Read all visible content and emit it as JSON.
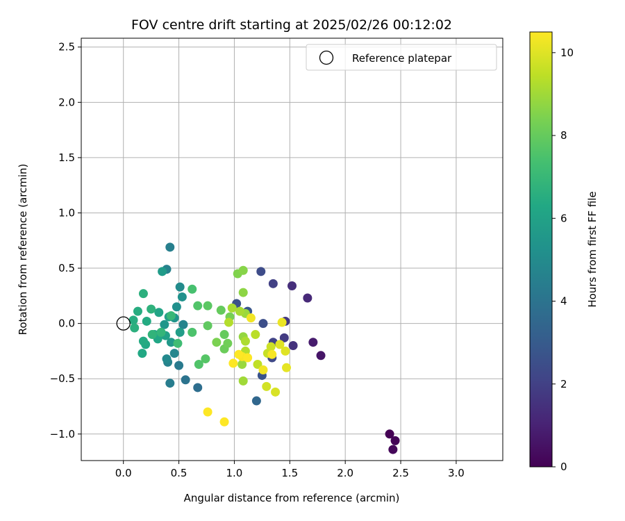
{
  "chart_data": {
    "type": "scatter",
    "title": "FOV centre drift starting at 2025/02/26 00:12:02",
    "xlabel": "Angular distance from reference (arcmin)",
    "ylabel": "Rotation from reference (arcmin)",
    "xlim": [
      -0.38,
      3.42
    ],
    "ylim": [
      -1.24,
      2.58
    ],
    "xticks": [
      0.0,
      0.5,
      1.0,
      1.5,
      2.0,
      2.5,
      3.0
    ],
    "xtick_labels": [
      "0.0",
      "0.5",
      "1.0",
      "1.5",
      "2.0",
      "2.5",
      "3.0"
    ],
    "yticks": [
      -1.0,
      -0.5,
      0.0,
      0.5,
      1.0,
      1.5,
      2.0,
      2.5
    ],
    "ytick_labels": [
      "−1.0",
      "−0.5",
      "0.0",
      "0.5",
      "1.0",
      "1.5",
      "2.0",
      "2.5"
    ],
    "grid": true,
    "legend": {
      "placement": "top-right",
      "entries": [
        "Reference platepar"
      ]
    },
    "reference": {
      "x": 0.0,
      "y": 0.0,
      "label": "Reference platepar"
    },
    "colorbar": {
      "label": "Hours from first FF file",
      "colormap": "viridis",
      "range": [
        0,
        10.5
      ],
      "ticks": [
        0,
        2,
        4,
        6,
        8,
        10
      ],
      "tick_labels": [
        "0",
        "2",
        "4",
        "6",
        "8",
        "10"
      ]
    },
    "points": [
      {
        "x": 2.4,
        "y": -1.0,
        "c": 0.0
      },
      {
        "x": 2.45,
        "y": -1.06,
        "c": 0.1
      },
      {
        "x": 2.43,
        "y": -1.14,
        "c": 0.2
      },
      {
        "x": 1.78,
        "y": -0.29,
        "c": 0.6
      },
      {
        "x": 1.71,
        "y": -0.17,
        "c": 0.8
      },
      {
        "x": 1.66,
        "y": 0.23,
        "c": 1.2
      },
      {
        "x": 1.52,
        "y": 0.34,
        "c": 1.4
      },
      {
        "x": 1.53,
        "y": -0.2,
        "c": 1.5
      },
      {
        "x": 1.46,
        "y": 0.02,
        "c": 1.7
      },
      {
        "x": 1.45,
        "y": -0.13,
        "c": 1.8
      },
      {
        "x": 1.35,
        "y": 0.36,
        "c": 2.0
      },
      {
        "x": 1.35,
        "y": -0.17,
        "c": 2.1
      },
      {
        "x": 1.34,
        "y": -0.31,
        "c": 2.3
      },
      {
        "x": 1.24,
        "y": 0.47,
        "c": 2.4
      },
      {
        "x": 1.26,
        "y": 0.0,
        "c": 2.5
      },
      {
        "x": 1.25,
        "y": -0.47,
        "c": 2.7
      },
      {
        "x": 1.02,
        "y": 0.18,
        "c": 2.6
      },
      {
        "x": 1.12,
        "y": 0.11,
        "c": 2.8
      },
      {
        "x": 1.2,
        "y": -0.7,
        "c": 3.5
      },
      {
        "x": 0.67,
        "y": -0.58,
        "c": 3.8
      },
      {
        "x": 0.56,
        "y": -0.51,
        "c": 4.0
      },
      {
        "x": 0.5,
        "y": -0.38,
        "c": 4.3
      },
      {
        "x": 0.42,
        "y": -0.54,
        "c": 4.4
      },
      {
        "x": 0.42,
        "y": 0.69,
        "c": 4.5
      },
      {
        "x": 0.39,
        "y": 0.49,
        "c": 4.6
      },
      {
        "x": 0.4,
        "y": -0.35,
        "c": 4.6
      },
      {
        "x": 0.54,
        "y": -0.01,
        "c": 4.7
      },
      {
        "x": 0.46,
        "y": -0.27,
        "c": 4.8
      },
      {
        "x": 0.39,
        "y": -0.32,
        "c": 4.9
      },
      {
        "x": 0.51,
        "y": 0.33,
        "c": 5.0
      },
      {
        "x": 0.48,
        "y": 0.15,
        "c": 5.2
      },
      {
        "x": 0.53,
        "y": 0.24,
        "c": 5.3
      },
      {
        "x": 0.46,
        "y": 0.05,
        "c": 5.4
      },
      {
        "x": 0.37,
        "y": -0.01,
        "c": 5.5
      },
      {
        "x": 0.43,
        "y": -0.17,
        "c": 5.6
      },
      {
        "x": 0.35,
        "y": 0.47,
        "c": 5.7
      },
      {
        "x": 0.51,
        "y": -0.08,
        "c": 5.8
      },
      {
        "x": 0.41,
        "y": 0.06,
        "c": 5.9
      },
      {
        "x": 0.38,
        "y": -0.11,
        "c": 6.0
      },
      {
        "x": 0.32,
        "y": 0.1,
        "c": 6.1
      },
      {
        "x": 0.28,
        "y": -0.1,
        "c": 6.2
      },
      {
        "x": 0.31,
        "y": -0.14,
        "c": 6.2
      },
      {
        "x": 0.2,
        "y": -0.19,
        "c": 6.3
      },
      {
        "x": 0.17,
        "y": -0.27,
        "c": 6.3
      },
      {
        "x": 0.18,
        "y": -0.16,
        "c": 6.4
      },
      {
        "x": 0.21,
        "y": 0.02,
        "c": 6.4
      },
      {
        "x": 0.13,
        "y": 0.11,
        "c": 6.5
      },
      {
        "x": 0.09,
        "y": 0.03,
        "c": 6.5
      },
      {
        "x": 0.1,
        "y": -0.04,
        "c": 6.6
      },
      {
        "x": 0.18,
        "y": 0.27,
        "c": 6.6
      },
      {
        "x": 0.25,
        "y": 0.13,
        "c": 6.7
      },
      {
        "x": 0.26,
        "y": -0.1,
        "c": 6.8
      },
      {
        "x": 0.34,
        "y": -0.08,
        "c": 6.9
      },
      {
        "x": 0.43,
        "y": 0.07,
        "c": 7.0
      },
      {
        "x": 0.49,
        "y": -0.18,
        "c": 7.2
      },
      {
        "x": 0.62,
        "y": 0.31,
        "c": 7.4
      },
      {
        "x": 0.62,
        "y": -0.08,
        "c": 7.5
      },
      {
        "x": 0.67,
        "y": 0.16,
        "c": 7.6
      },
      {
        "x": 0.68,
        "y": -0.37,
        "c": 7.6
      },
      {
        "x": 0.74,
        "y": -0.32,
        "c": 7.7
      },
      {
        "x": 0.76,
        "y": 0.16,
        "c": 7.8
      },
      {
        "x": 0.76,
        "y": -0.02,
        "c": 7.9
      },
      {
        "x": 0.88,
        "y": 0.12,
        "c": 8.0
      },
      {
        "x": 0.91,
        "y": -0.1,
        "c": 8.0
      },
      {
        "x": 0.91,
        "y": -0.23,
        "c": 8.1
      },
      {
        "x": 0.94,
        "y": -0.18,
        "c": 8.2
      },
      {
        "x": 0.96,
        "y": 0.06,
        "c": 8.3
      },
      {
        "x": 0.84,
        "y": -0.17,
        "c": 8.4
      },
      {
        "x": 1.03,
        "y": 0.45,
        "c": 8.5
      },
      {
        "x": 1.08,
        "y": 0.48,
        "c": 8.6
      },
      {
        "x": 1.08,
        "y": 0.28,
        "c": 8.7
      },
      {
        "x": 1.08,
        "y": -0.12,
        "c": 8.8
      },
      {
        "x": 1.1,
        "y": 0.09,
        "c": 8.9
      },
      {
        "x": 1.07,
        "y": -0.37,
        "c": 8.9
      },
      {
        "x": 1.08,
        "y": -0.52,
        "c": 9.0
      },
      {
        "x": 0.98,
        "y": 0.14,
        "c": 9.1
      },
      {
        "x": 1.05,
        "y": 0.11,
        "c": 9.1
      },
      {
        "x": 1.1,
        "y": -0.16,
        "c": 9.2
      },
      {
        "x": 1.1,
        "y": -0.25,
        "c": 9.3
      },
      {
        "x": 0.95,
        "y": 0.01,
        "c": 9.3
      },
      {
        "x": 1.19,
        "y": -0.1,
        "c": 9.4
      },
      {
        "x": 1.21,
        "y": -0.37,
        "c": 9.5
      },
      {
        "x": 1.3,
        "y": -0.27,
        "c": 9.6
      },
      {
        "x": 1.33,
        "y": -0.21,
        "c": 9.7
      },
      {
        "x": 1.29,
        "y": -0.57,
        "c": 9.8
      },
      {
        "x": 1.37,
        "y": -0.62,
        "c": 9.9
      },
      {
        "x": 1.41,
        "y": -0.19,
        "c": 10.0
      },
      {
        "x": 1.46,
        "y": -0.25,
        "c": 10.0
      },
      {
        "x": 1.47,
        "y": -0.4,
        "c": 10.1
      },
      {
        "x": 1.43,
        "y": 0.01,
        "c": 10.2
      },
      {
        "x": 1.15,
        "y": 0.05,
        "c": 10.3
      },
      {
        "x": 1.26,
        "y": -0.42,
        "c": 10.3
      },
      {
        "x": 1.34,
        "y": -0.28,
        "c": 10.4
      },
      {
        "x": 1.07,
        "y": -0.3,
        "c": 10.4
      },
      {
        "x": 1.12,
        "y": -0.31,
        "c": 10.5
      },
      {
        "x": 1.04,
        "y": -0.28,
        "c": 10.5
      },
      {
        "x": 0.99,
        "y": -0.36,
        "c": 10.5
      },
      {
        "x": 0.76,
        "y": -0.8,
        "c": 10.5
      },
      {
        "x": 0.91,
        "y": -0.89,
        "c": 10.5
      }
    ]
  }
}
